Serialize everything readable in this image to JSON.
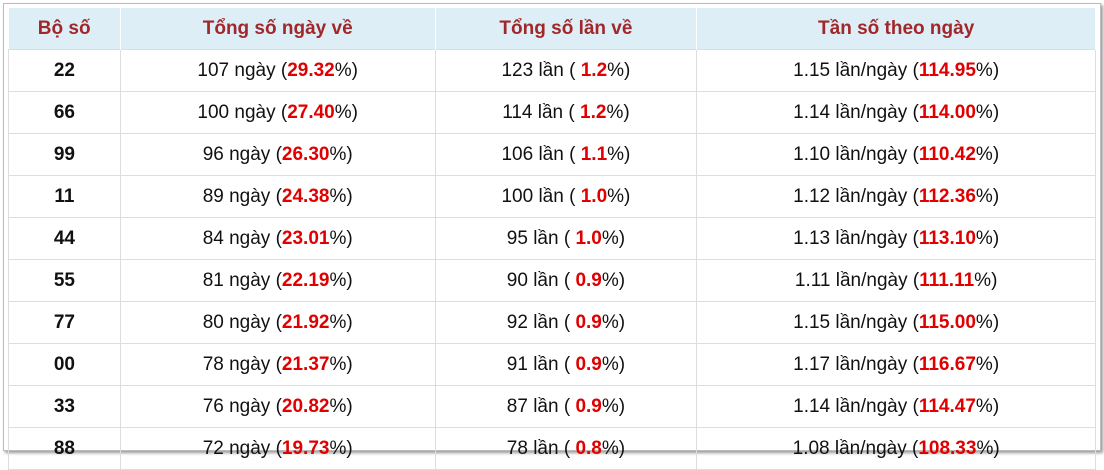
{
  "table": {
    "header": [
      "Bộ số",
      "Tổng số ngày về",
      "Tổng số lần về",
      "Tần số theo ngày"
    ],
    "rows": [
      [
        "22",
        [
          "107 ngày (",
          "29.32",
          "%)"
        ],
        [
          "123 lần ( ",
          "1.2",
          "%)"
        ],
        [
          "1.15 lần/ngày (",
          "114.95",
          "%)"
        ]
      ],
      [
        "66",
        [
          "100 ngày (",
          "27.40",
          "%)"
        ],
        [
          "114 lần ( ",
          "1.2",
          "%)"
        ],
        [
          "1.14 lần/ngày (",
          "114.00",
          "%)"
        ]
      ],
      [
        "99",
        [
          "96 ngày (",
          "26.30",
          "%)"
        ],
        [
          "106 lần ( ",
          "1.1",
          "%)"
        ],
        [
          "1.10 lần/ngày (",
          "110.42",
          "%)"
        ]
      ],
      [
        "11",
        [
          "89 ngày (",
          "24.38",
          "%)"
        ],
        [
          "100 lần ( ",
          "1.0",
          "%)"
        ],
        [
          "1.12 lần/ngày (",
          "112.36",
          "%)"
        ]
      ],
      [
        "44",
        [
          "84 ngày (",
          "23.01",
          "%)"
        ],
        [
          "95 lần ( ",
          "1.0",
          "%)"
        ],
        [
          "1.13 lần/ngày (",
          "113.10",
          "%)"
        ]
      ],
      [
        "55",
        [
          "81 ngày (",
          "22.19",
          "%)"
        ],
        [
          "90 lần ( ",
          "0.9",
          "%)"
        ],
        [
          "1.11 lần/ngày (",
          "111.11",
          "%)"
        ]
      ],
      [
        "77",
        [
          "80 ngày (",
          "21.92",
          "%)"
        ],
        [
          "92 lần ( ",
          "0.9",
          "%)"
        ],
        [
          "1.15 lần/ngày (",
          "115.00",
          "%)"
        ]
      ],
      [
        "00",
        [
          "78 ngày (",
          "21.37",
          "%)"
        ],
        [
          "91 lần ( ",
          "0.9",
          "%)"
        ],
        [
          "1.17 lần/ngày (",
          "116.67",
          "%)"
        ]
      ],
      [
        "33",
        [
          "76 ngày (",
          "20.82",
          "%)"
        ],
        [
          "87 lần ( ",
          "0.9",
          "%)"
        ],
        [
          "1.14 lần/ngày (",
          "114.47",
          "%)"
        ]
      ],
      [
        "88",
        [
          "72 ngày (",
          "19.73",
          "%)"
        ],
        [
          "78 lần ( ",
          "0.8",
          "%)"
        ],
        [
          "1.08 lần/ngày (",
          "108.33",
          "%)"
        ]
      ]
    ]
  }
}
